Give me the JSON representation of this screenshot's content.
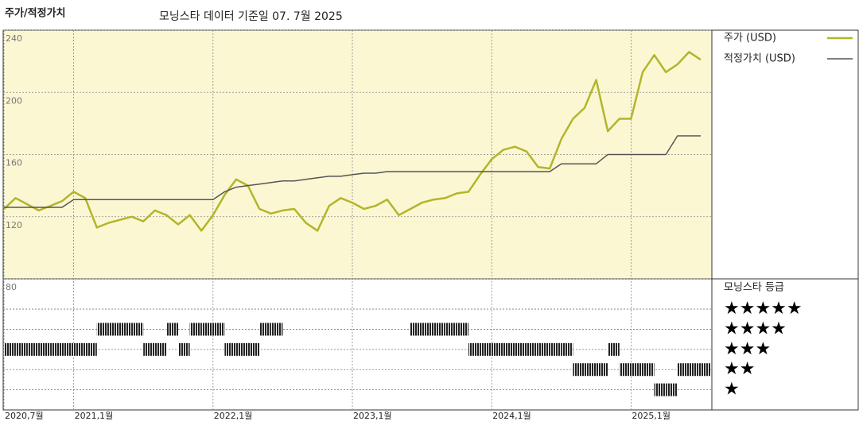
{
  "chart_data": {
    "type": "line",
    "title": "주가/적정가치",
    "subtitle": "모닝스타 데이터 기준일 07. 7월 2025",
    "x": [
      "2020-07",
      "2020-08",
      "2020-09",
      "2020-10",
      "2020-11",
      "2020-12",
      "2021-01",
      "2021-02",
      "2021-03",
      "2021-04",
      "2021-05",
      "2021-06",
      "2021-07",
      "2021-08",
      "2021-09",
      "2021-10",
      "2021-11",
      "2021-12",
      "2022-01",
      "2022-02",
      "2022-03",
      "2022-04",
      "2022-05",
      "2022-06",
      "2022-07",
      "2022-08",
      "2022-09",
      "2022-10",
      "2022-11",
      "2022-12",
      "2023-01",
      "2023-02",
      "2023-03",
      "2023-04",
      "2023-05",
      "2023-06",
      "2023-07",
      "2023-08",
      "2023-09",
      "2023-10",
      "2023-11",
      "2023-12",
      "2024-01",
      "2024-02",
      "2024-03",
      "2024-04",
      "2024-05",
      "2024-06",
      "2024-07",
      "2024-08",
      "2024-09",
      "2024-10",
      "2024-11",
      "2024-12",
      "2025-01",
      "2025-02",
      "2025-03",
      "2025-04",
      "2025-05",
      "2025-06",
      "2025-07"
    ],
    "xticks": [
      {
        "value": "2020-07",
        "label": "2020,7월"
      },
      {
        "value": "2021-01",
        "label": "2021,1월"
      },
      {
        "value": "2022-01",
        "label": "2022,1월"
      },
      {
        "value": "2023-01",
        "label": "2023,1월"
      },
      {
        "value": "2024-01",
        "label": "2024,1월"
      },
      {
        "value": "2025-01",
        "label": "2025,1월"
      }
    ],
    "series": [
      {
        "name": "주가 (USD)",
        "color": "#b3b52a",
        "values": [
          125,
          132,
          128,
          124,
          127,
          130,
          136,
          132,
          113,
          116,
          118,
          120,
          117,
          124,
          121,
          115,
          121,
          111,
          121,
          134,
          144,
          140,
          125,
          122,
          124,
          125,
          116,
          111,
          127,
          132,
          129,
          125,
          127,
          131,
          121,
          125,
          129,
          131,
          132,
          135,
          136,
          147,
          157,
          163,
          165,
          162,
          152,
          151,
          170,
          183,
          190,
          208,
          175,
          183,
          183,
          213,
          224,
          213,
          218,
          226,
          221
        ]
      },
      {
        "name": "적정가치 (USD)",
        "color": "#555555",
        "values": [
          126,
          126,
          126,
          126,
          126,
          126,
          131,
          131,
          131,
          131,
          131,
          131,
          131,
          131,
          131,
          131,
          131,
          131,
          131,
          136,
          139,
          140,
          141,
          142,
          143,
          143,
          144,
          145,
          146,
          146,
          147,
          148,
          148,
          149,
          149,
          149,
          149,
          149,
          149,
          149,
          149,
          149,
          149,
          149,
          149,
          149,
          149,
          149,
          154,
          154,
          154,
          154,
          160,
          160,
          160,
          160,
          160,
          160,
          172,
          172,
          172
        ]
      }
    ],
    "ylim": [
      80,
      240
    ],
    "yticks": [
      80,
      120,
      160,
      200,
      240
    ],
    "grid": true,
    "rating": {
      "title": "모닝스타 등급",
      "lim": [
        0,
        6.5
      ],
      "ticks": [
        {
          "value": 5,
          "label": "★★★★★"
        },
        {
          "value": 4,
          "label": "★★★★"
        },
        {
          "value": 3,
          "label": "★★★"
        },
        {
          "value": 2,
          "label": "★★"
        },
        {
          "value": 1,
          "label": "★"
        }
      ],
      "values": [
        3,
        3,
        3,
        3,
        3,
        3,
        3,
        3,
        4,
        4,
        4,
        4,
        3,
        3,
        4,
        3,
        4,
        4,
        4,
        3,
        3,
        3,
        4,
        4,
        null,
        null,
        null,
        null,
        null,
        null,
        null,
        null,
        null,
        null,
        null,
        4,
        4,
        4,
        4,
        4,
        3,
        3,
        3,
        3,
        3,
        3,
        3,
        3,
        3,
        2,
        2,
        2,
        3,
        2,
        2,
        2,
        1,
        1,
        2,
        2,
        2
      ]
    }
  }
}
